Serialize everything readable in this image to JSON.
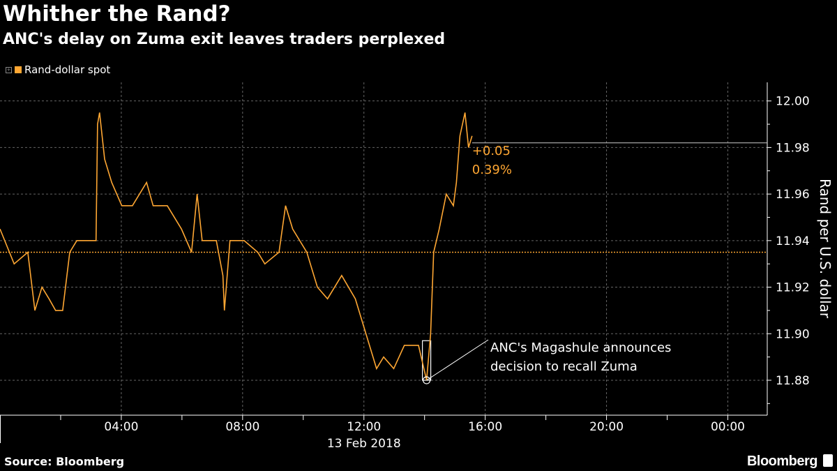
{
  "header": {
    "title": "Whither the Rand?",
    "subtitle": "ANC's delay on Zuma exit leaves traders perplexed"
  },
  "legend": {
    "label": "Rand-dollar spot",
    "color": "#ffa733"
  },
  "footer": {
    "source": "Source: Bloomberg",
    "brand": "Bloomberg"
  },
  "chart_data": {
    "type": "line",
    "title": "Whither the Rand?",
    "subtitle": "ANC's delay on Zuma exit leaves traders perplexed",
    "ylabel": "Rand per U.S. dollar",
    "xlabel": "13 Feb 2018",
    "x_tick_labels": [
      "04:00",
      "08:00",
      "12:00",
      "16:00",
      "20:00",
      "00:00"
    ],
    "y_tick_labels": [
      "12.00",
      "11.98",
      "11.96",
      "11.94",
      "11.92",
      "11.90",
      "11.88"
    ],
    "y_ticks": [
      12.0,
      11.98,
      11.96,
      11.94,
      11.92,
      11.9,
      11.88
    ],
    "ylim": [
      11.865,
      12.008
    ],
    "xlim_hours": [
      0,
      25.3
    ],
    "grid": true,
    "legend_position": "top-left",
    "series": [
      {
        "name": "Rand-dollar spot",
        "color": "#ffa733",
        "x": [
          "00:00",
          "00:28",
          "00:55",
          "01:09",
          "01:23",
          "01:37",
          "01:50",
          "02:04",
          "02:18",
          "02:32",
          "02:59",
          "03:10",
          "03:13",
          "03:17",
          "03:27",
          "03:41",
          "04:01",
          "04:22",
          "04:50",
          "05:03",
          "05:31",
          "05:59",
          "06:19",
          "06:30",
          "06:40",
          "07:08",
          "07:21",
          "07:24",
          "07:35",
          "08:03",
          "08:30",
          "08:44",
          "09:12",
          "09:25",
          "09:39",
          "10:07",
          "10:28",
          "10:48",
          "11:16",
          "11:43",
          "12:04",
          "12:25",
          "12:39",
          "12:59",
          "13:20",
          "13:48",
          "14:04",
          "14:12",
          "14:18",
          "14:29",
          "14:43",
          "14:57",
          "15:03",
          "15:10",
          "15:20",
          "15:27",
          "15:34"
        ],
        "values": [
          11.945,
          11.93,
          11.935,
          11.91,
          11.92,
          11.915,
          11.91,
          11.91,
          11.935,
          11.94,
          11.94,
          11.94,
          11.99,
          11.995,
          11.975,
          11.965,
          11.955,
          11.955,
          11.965,
          11.955,
          11.955,
          11.945,
          11.935,
          11.96,
          11.94,
          11.94,
          11.925,
          11.91,
          11.94,
          11.94,
          11.935,
          11.93,
          11.935,
          11.955,
          11.945,
          11.935,
          11.92,
          11.915,
          11.925,
          11.915,
          11.9,
          11.885,
          11.89,
          11.885,
          11.895,
          11.895,
          11.88,
          11.9,
          11.935,
          11.945,
          11.96,
          11.955,
          11.965,
          11.985,
          11.995,
          11.98,
          11.985
        ]
      }
    ],
    "reference_line": {
      "value": 11.935,
      "color": "#ffa733",
      "style": "dotted"
    },
    "last_value_annotation": {
      "change": "+0.05",
      "percent": "0.39%",
      "color": "#ffa733"
    },
    "annotation": {
      "lines": [
        "ANC's Magashule announces",
        "decision to recall Zuma"
      ],
      "time": "14:04",
      "value": 11.88
    }
  }
}
